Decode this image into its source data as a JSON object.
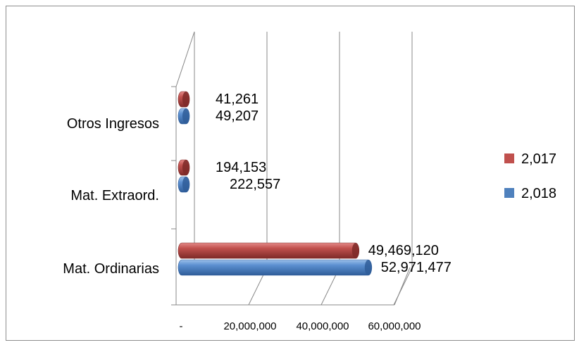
{
  "chart_data": {
    "type": "bar",
    "orientation": "horizontal",
    "style": "3d-cylinder",
    "categories": [
      "Mat. Ordinarias",
      "Mat. Extraord.",
      "Otros Ingresos"
    ],
    "series": [
      {
        "name": "2,018",
        "color": "#4f81bd",
        "values": [
          52971477,
          222557,
          49207
        ],
        "labels": [
          "52,971,477",
          "222,557",
          "49,207"
        ]
      },
      {
        "name": "2,017",
        "color": "#c0504d",
        "values": [
          49469120,
          194153,
          41261
        ],
        "labels": [
          "49,469,120",
          "194,153",
          "41,261"
        ]
      }
    ],
    "x_ticks": [
      "-",
      "20,000,000",
      "40,000,000",
      "60,000,000"
    ],
    "x_tick_values": [
      0,
      20000000,
      40000000,
      60000000
    ],
    "xlim": [
      0,
      60000000
    ],
    "grid": true,
    "legend_position": "right"
  }
}
